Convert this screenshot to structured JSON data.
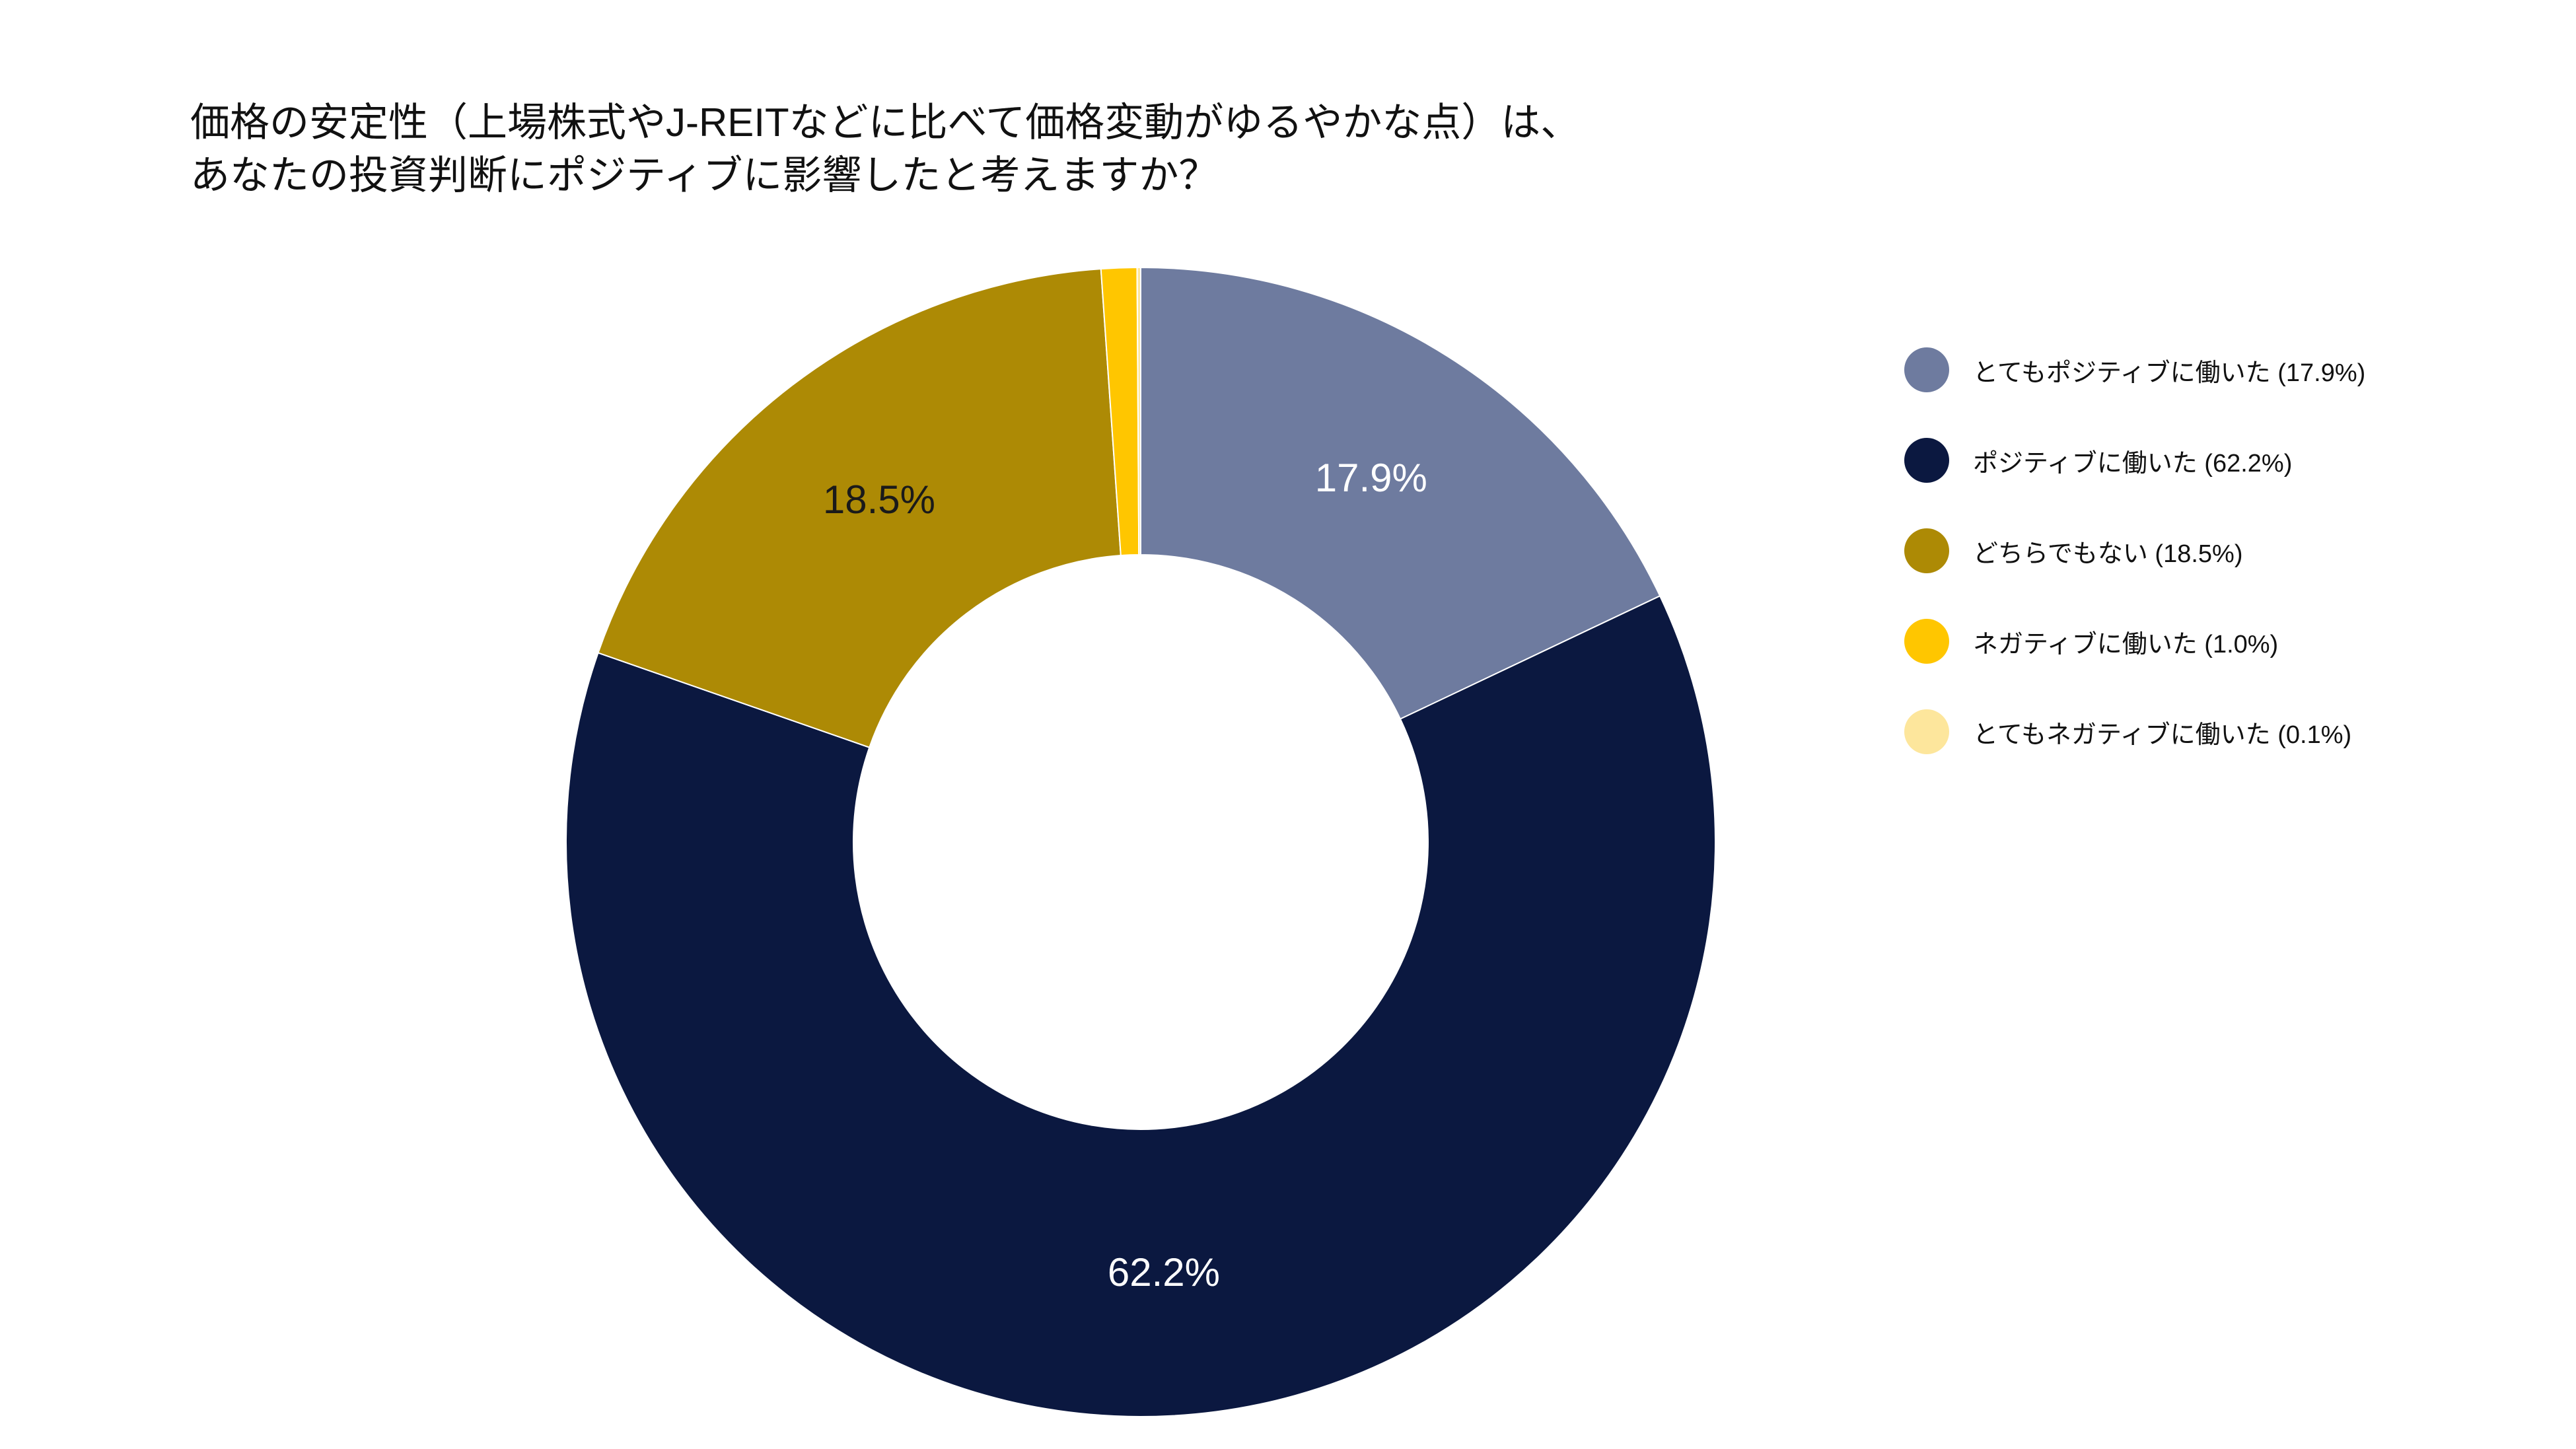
{
  "chart_data": {
    "type": "pie",
    "donut": true,
    "title": "価格の安定性（上場株式やJ-REITなどに比べて価格変動がゆるやかな点）は、\nあなたの投資判断にポジティブに影響したと考えますか？",
    "categories": [
      "とてもポジティブに働いた",
      "ポジティブに働いた",
      "どちらでもない",
      "ネガティブに働いた",
      "とてもネガティブに働いた"
    ],
    "values": [
      17.9,
      62.2,
      18.5,
      1.0,
      0.1
    ],
    "unit": "%",
    "colors": [
      "#6e7b9f",
      "#0b1840",
      "#ad8a05",
      "#ffc600",
      "#fde69c"
    ],
    "data_labels": [
      "17.9%",
      "62.2%",
      "18.5%",
      "",
      ""
    ],
    "data_label_colors": [
      "#ffffff",
      "#ffffff",
      "#1a1a1a",
      "#1a1a1a",
      "#1a1a1a"
    ],
    "start": "top",
    "direction": "clockwise",
    "legend_position": "right"
  }
}
